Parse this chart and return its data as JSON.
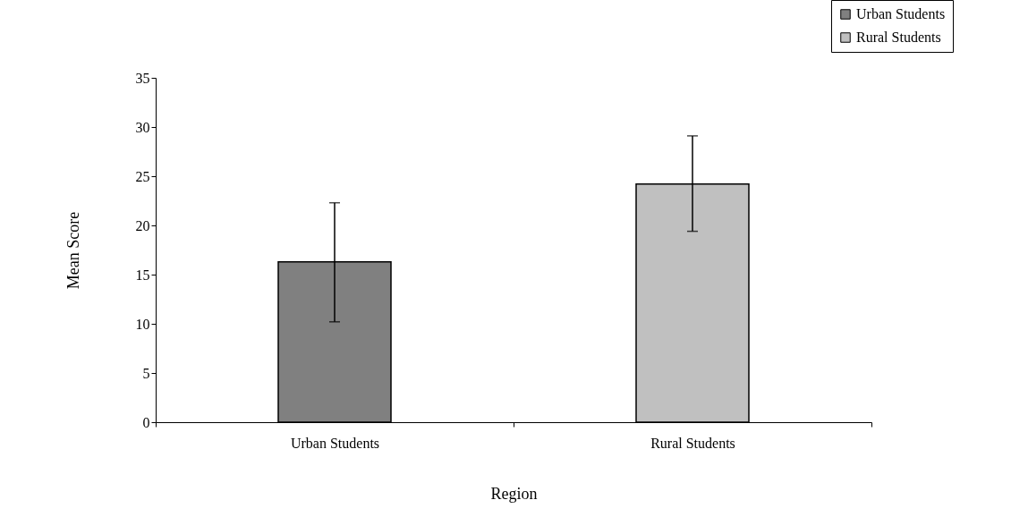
{
  "chart_data": {
    "type": "bar",
    "xlabel": "Region",
    "ylabel": "Mean Score",
    "categories": [
      "Urban Students",
      "Rural Students"
    ],
    "series": [
      {
        "name": "Urban Students",
        "color": "#808080",
        "values": [
          16.3,
          null
        ],
        "errors": [
          [
            10.2,
            22.3
          ],
          null
        ]
      },
      {
        "name": "Rural Students",
        "color": "#c0c0c0",
        "values": [
          null,
          24.2
        ],
        "errors": [
          null,
          [
            19.4,
            29.1
          ]
        ]
      }
    ],
    "ylim": [
      0,
      35
    ],
    "yticks": [
      0,
      5,
      10,
      15,
      20,
      25,
      30,
      35
    ],
    "grid": false,
    "legend": "top right"
  }
}
